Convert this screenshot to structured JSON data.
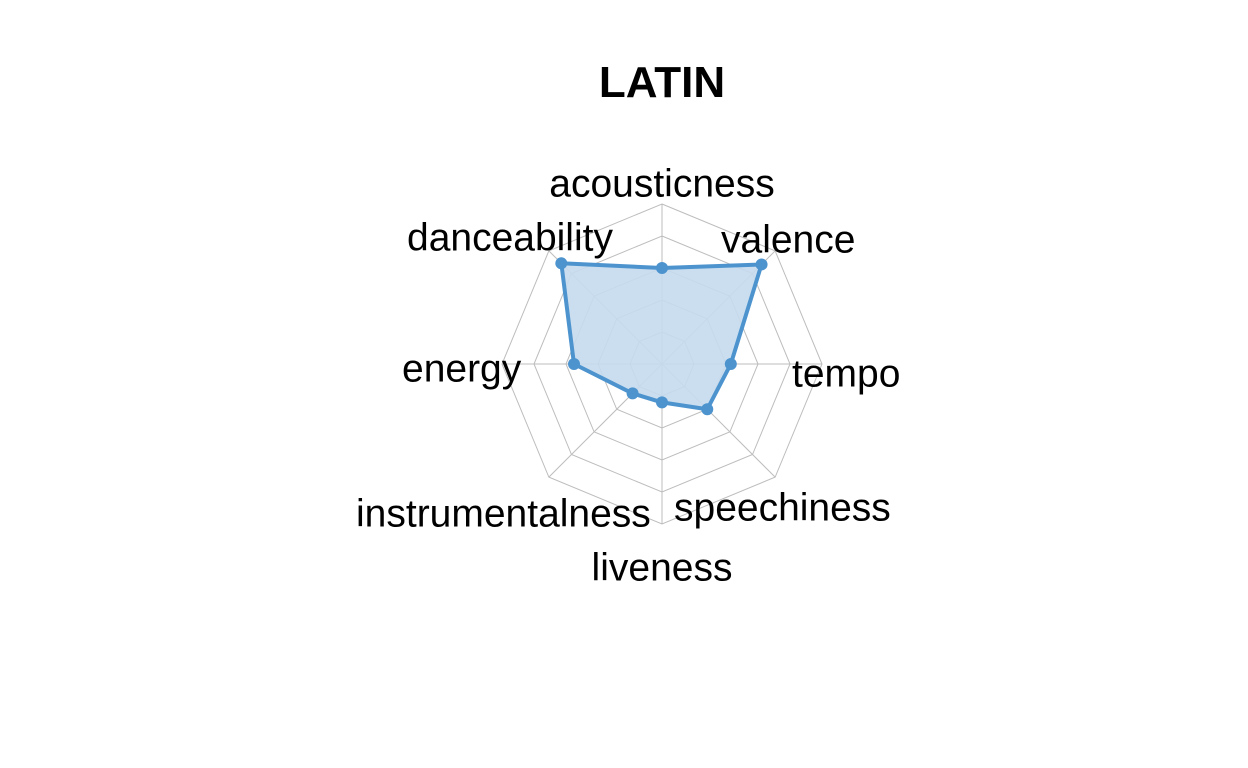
{
  "chart_data": {
    "type": "radar",
    "title": "LATIN",
    "axes": [
      "acousticness",
      "valence",
      "tempo",
      "speechiness",
      "liveness",
      "instrumentalness",
      "energy",
      "danceability"
    ],
    "series": [
      {
        "values": [
          0.6,
          0.88,
          0.43,
          0.4,
          0.24,
          0.26,
          0.55,
          0.89
        ]
      }
    ],
    "range": [
      0,
      1
    ],
    "grid_levels": 5,
    "grid": true,
    "colors": {
      "line": "#4d94cf",
      "fill": "#c5daee",
      "grid": "#bdbdbd"
    }
  }
}
